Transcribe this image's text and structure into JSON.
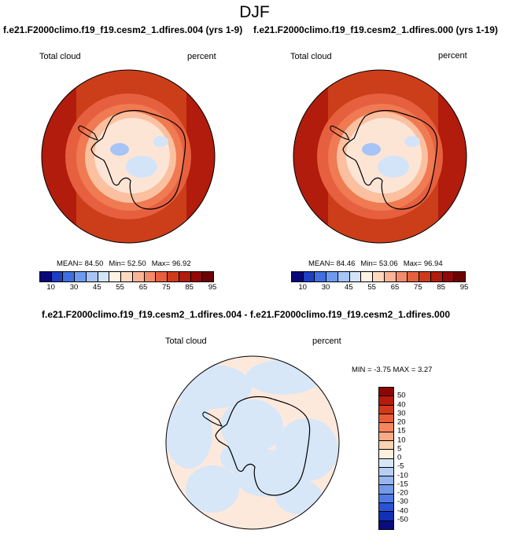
{
  "main_title": "DJF",
  "panels": [
    {
      "title": "f.e21.F2000climo.f19_f19.cesm2_1.dfires.004 (yrs 1-9)",
      "left_label": "Total cloud",
      "right_label": "percent",
      "mean": "MEAN=  84.50",
      "min": "Min=  52.50",
      "max": "Max=  96.92"
    },
    {
      "title": "f.e21.F2000climo.f19_f19.cesm2_1.dfires.000 (yrs 1-19)",
      "left_label": "Total cloud",
      "right_label": "percent",
      "mean": "MEAN=  84.46",
      "min": "Min=  53.06",
      "max": "Max=  96.94"
    }
  ],
  "diff_panel": {
    "title": "f.e21.F2000climo.f19_f19.cesm2_1.dfires.004 - f.e21.F2000climo.f19_f19.cesm2_1.dfires.000",
    "left_label": "Total cloud",
    "right_label": "percent",
    "minmax": "MIN =  -3.75 MAX =  3.27"
  },
  "colors": {
    "abs_scale": [
      "#08087a",
      "#1c3fc4",
      "#3f6fe0",
      "#6e9bef",
      "#a6c4f5",
      "#d4e4f8",
      "#fff3e4",
      "#fdd9bf",
      "#fbb496",
      "#f48b6c",
      "#e6603f",
      "#cf3a1c",
      "#b21c0c",
      "#930808",
      "#6c0303"
    ],
    "diff_scale_top_to_bottom": [
      "#8e0404",
      "#b71a0a",
      "#d2381a",
      "#e85d38",
      "#f5865e",
      "#f9ab87",
      "#fdd2b2",
      "#fff0de",
      "#d7e7f8",
      "#b7cff4",
      "#98b5ef",
      "#7599ea",
      "#4f7ae6",
      "#2a52d6",
      "#1130b6",
      "#0a0d80"
    ],
    "polar_outer": "#cc3e1a",
    "polar_ring_mid": "#f07a52",
    "polar_ring_light": "#fbc0a0",
    "polar_interior": "#fde5d6",
    "diff_land": "#fde9dc",
    "diff_sea": "#d7e7f8"
  },
  "chart_data": [
    {
      "type": "heatmap",
      "projection": "south polar stereographic",
      "title": "f.e21.F2000climo.f19_f19.cesm2_1.dfires.004 (yrs 1-9)",
      "variable": "Total cloud",
      "units": "percent",
      "colorbar_levels": [
        10,
        30,
        45,
        55,
        65,
        75,
        85,
        95
      ],
      "stats": {
        "mean": 84.5,
        "min": 52.5,
        "max": 96.92
      }
    },
    {
      "type": "heatmap",
      "projection": "south polar stereographic",
      "title": "f.e21.F2000climo.f19_f19.cesm2_1.dfires.000 (yrs 1-19)",
      "variable": "Total cloud",
      "units": "percent",
      "colorbar_levels": [
        10,
        30,
        45,
        55,
        65,
        75,
        85,
        95
      ],
      "stats": {
        "mean": 84.46,
        "min": 53.06,
        "max": 96.94
      }
    },
    {
      "type": "heatmap",
      "projection": "south polar stereographic",
      "title": "f.e21.F2000climo.f19_f19.cesm2_1.dfires.004 - f.e21.F2000climo.f19_f19.cesm2_1.dfires.000",
      "variable": "Total cloud",
      "units": "percent",
      "colorbar_levels": [
        50,
        40,
        30,
        20,
        15,
        10,
        5,
        0,
        -5,
        -10,
        -15,
        -20,
        -30,
        -40,
        -50
      ],
      "stats": {
        "min": -3.75,
        "max": 3.27
      }
    }
  ]
}
